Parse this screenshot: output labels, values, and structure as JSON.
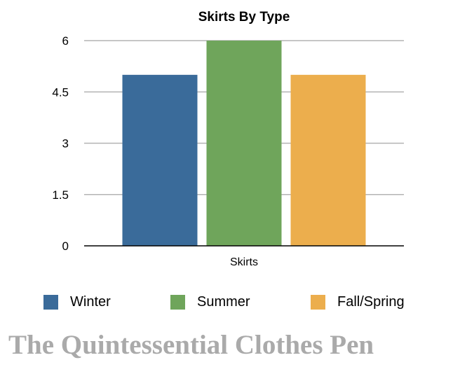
{
  "chart_data": {
    "type": "bar",
    "title": "Skirts By Type",
    "categories": [
      "Skirts"
    ],
    "series": [
      {
        "name": "Winter",
        "values": [
          5
        ],
        "color": "#3a6b9a"
      },
      {
        "name": "Summer",
        "values": [
          6
        ],
        "color": "#6fa55b"
      },
      {
        "name": "Fall/Spring",
        "values": [
          5
        ],
        "color": "#ecae4d"
      }
    ],
    "xlabel": "",
    "ylabel": "",
    "ylim": [
      0,
      6
    ],
    "yticks": [
      "0",
      "1.5",
      "3",
      "4.5",
      "6"
    ],
    "grid": true,
    "legend": "bottom"
  },
  "watermark": "The Quintessential Clothes Pen"
}
